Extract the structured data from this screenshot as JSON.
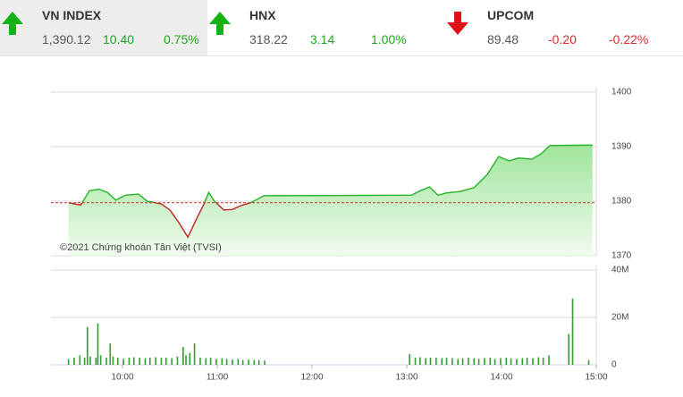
{
  "header": {
    "indices": [
      {
        "name": "VN INDEX",
        "value": "1,390.12",
        "change": "10.40",
        "percent": "0.75%"
      },
      {
        "name": "HNX",
        "value": "318.22",
        "change": "3.14",
        "percent": "1.00%"
      },
      {
        "name": "UPCOM",
        "value": "89.48",
        "change": "-0.20",
        "percent": "-0.22%"
      }
    ]
  },
  "chart_data": [
    {
      "type": "area",
      "annotation": "©2021 Chứng khoán Tân Việt (TVSI)",
      "color": "#2fb52f",
      "negative_color": "#c0302a",
      "reference": 1379.72,
      "x": [
        9.43,
        9.56,
        9.65,
        9.75,
        9.84,
        9.93,
        10.03,
        10.17,
        10.26,
        10.41,
        10.5,
        10.59,
        10.69,
        10.78,
        10.86,
        10.91,
        10.97,
        11.07,
        11.16,
        11.25,
        11.35,
        11.44,
        11.49,
        13.05,
        13.14,
        13.24,
        13.33,
        13.42,
        13.57,
        13.71,
        13.85,
        13.97,
        14.08,
        14.18,
        14.32,
        14.42,
        14.51,
        14.96
      ],
      "values": [
        1379.7,
        1379.3,
        1381.9,
        1382.2,
        1381.6,
        1380.2,
        1381.1,
        1381.3,
        1380,
        1379.5,
        1378.4,
        1376.2,
        1373.4,
        1376.7,
        1379.5,
        1381.6,
        1380,
        1378.4,
        1378.5,
        1379.2,
        1379.7,
        1380.5,
        1381,
        1381.1,
        1381.9,
        1382.6,
        1381.1,
        1381.5,
        1381.8,
        1382.5,
        1384.9,
        1388.2,
        1387.4,
        1387.9,
        1387.7,
        1388.7,
        1390.2,
        1390.3
      ],
      "xlim": [
        9.245,
        15
      ],
      "ylim": [
        1370,
        1400
      ],
      "yticks": [
        1370,
        1380,
        1390,
        1400
      ],
      "grid": true
    },
    {
      "type": "bar",
      "color": "#2e9e2e",
      "x": [
        9.43,
        9.49,
        9.55,
        9.6,
        9.63,
        9.66,
        9.72,
        9.74,
        9.77,
        9.83,
        9.87,
        9.9,
        9.95,
        10.01,
        10.07,
        10.12,
        10.18,
        10.24,
        10.29,
        10.35,
        10.41,
        10.46,
        10.52,
        10.58,
        10.64,
        10.67,
        10.71,
        10.76,
        10.82,
        10.88,
        10.93,
        10.99,
        11.05,
        11.1,
        11.16,
        11.22,
        11.27,
        11.33,
        11.39,
        11.44,
        11.5,
        13.03,
        13.09,
        13.14,
        13.2,
        13.25,
        13.31,
        13.37,
        13.42,
        13.48,
        13.54,
        13.59,
        13.65,
        13.71,
        13.76,
        13.82,
        13.88,
        13.93,
        13.99,
        14.05,
        14.1,
        14.16,
        14.22,
        14.27,
        14.33,
        14.39,
        14.44,
        14.5,
        14.71,
        14.75,
        14.92
      ],
      "values": [
        2500000,
        3000000,
        4000000,
        3000000,
        16000000,
        3500000,
        3000000,
        17500000,
        4000000,
        3000000,
        9000000,
        3500000,
        3000000,
        2500000,
        3000000,
        3200000,
        3000000,
        2800000,
        3000000,
        3200000,
        3000000,
        3000000,
        2800000,
        3500000,
        7500000,
        4000000,
        5000000,
        9000000,
        3000000,
        2800000,
        3000000,
        2500000,
        2800000,
        2500000,
        2200000,
        2500000,
        2000000,
        2200000,
        2000000,
        2000000,
        1800000,
        4500000,
        3000000,
        3200000,
        2800000,
        3000000,
        3000000,
        2800000,
        3000000,
        2800000,
        2500000,
        2800000,
        3000000,
        2800000,
        2500000,
        2800000,
        3000000,
        2500000,
        2800000,
        3000000,
        2800000,
        2500000,
        2800000,
        3000000,
        2800000,
        3200000,
        3000000,
        4000000,
        13000000,
        28000000,
        2000000
      ],
      "xlim": [
        9.245,
        15
      ],
      "xticks": [
        {
          "value": 10,
          "label": "10:00"
        },
        {
          "value": 11,
          "label": "11:00"
        },
        {
          "value": 12,
          "label": "12:00"
        },
        {
          "value": 13,
          "label": "13:00"
        },
        {
          "value": 14,
          "label": "14:00"
        },
        {
          "value": 15,
          "label": "15:00"
        }
      ],
      "ylim": [
        0,
        40000000
      ],
      "yticks": [
        0,
        {
          "value": 20000000,
          "label": "20M"
        },
        {
          "value": 40000000,
          "label": "40M"
        }
      ],
      "grid": true
    }
  ]
}
